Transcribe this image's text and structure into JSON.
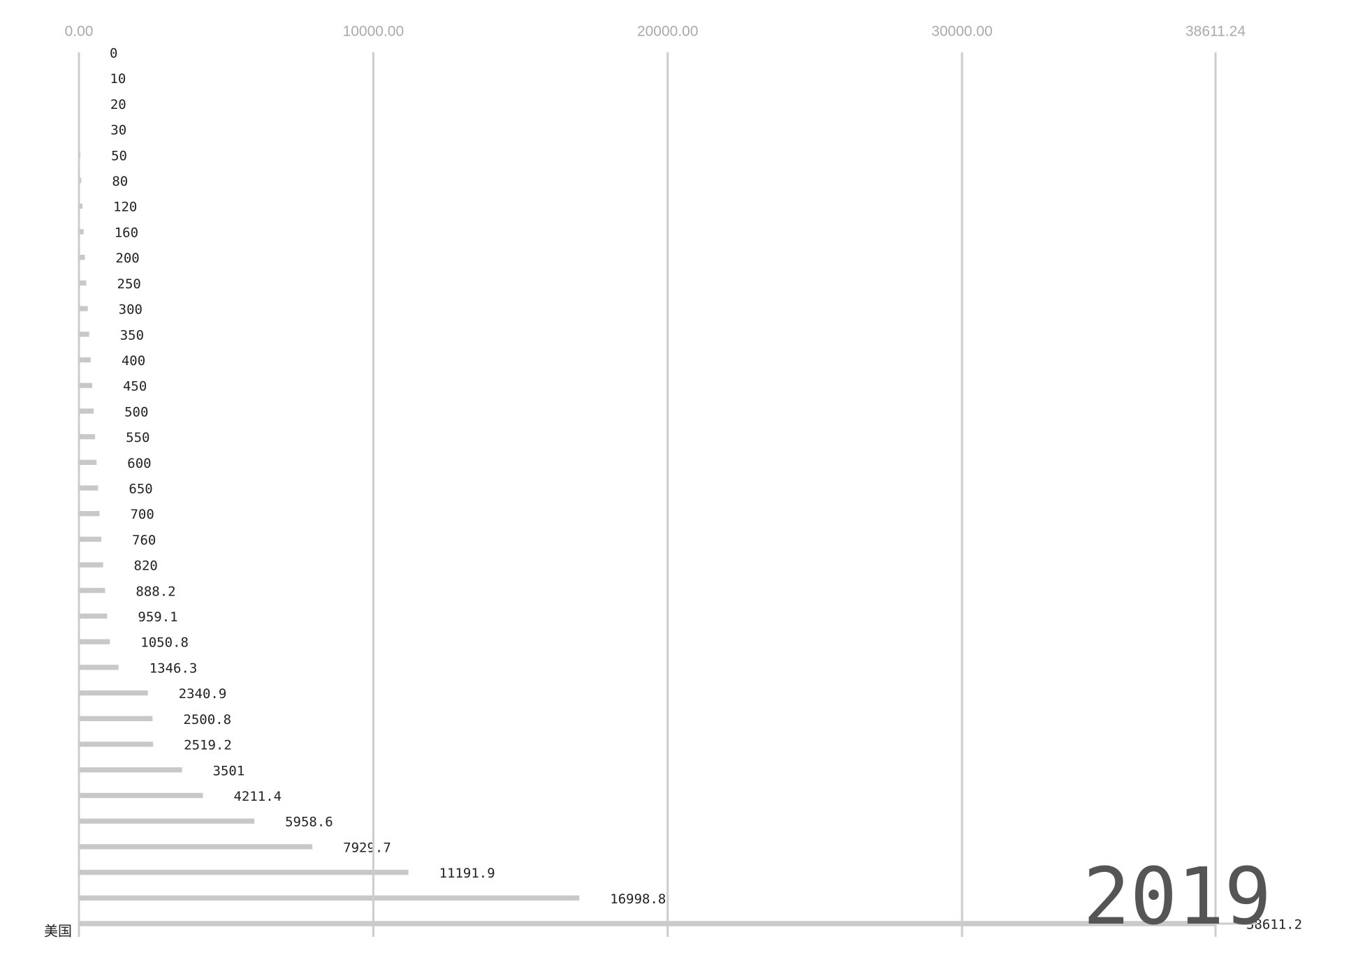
{
  "chart_data": {
    "type": "bar",
    "orientation": "horizontal",
    "year_label": "2019",
    "color": "#c8c8c8",
    "grid": true,
    "xlim": [
      0,
      38611.24
    ],
    "xticks": [
      {
        "value": 0,
        "label": "0.00"
      },
      {
        "value": 10000,
        "label": "10000.00"
      },
      {
        "value": 20000,
        "label": "20000.00"
      },
      {
        "value": 30000,
        "label": "30000.00"
      },
      {
        "value": 38611.24,
        "label": "38611.24"
      }
    ],
    "categories": [
      null,
      null,
      null,
      null,
      null,
      null,
      null,
      null,
      null,
      null,
      null,
      null,
      null,
      null,
      null,
      null,
      null,
      null,
      null,
      null,
      null,
      null,
      null,
      null,
      null,
      null,
      null,
      null,
      null,
      null,
      null,
      null,
      null,
      null,
      "美国"
    ],
    "values": [
      0,
      10,
      20,
      30,
      50,
      80,
      120,
      160,
      200,
      250,
      300,
      350,
      400,
      450,
      500,
      550,
      600,
      650,
      700,
      760,
      820,
      888.2,
      959.1,
      1050.8,
      1346.3,
      2340.9,
      2500.8,
      2519.2,
      3501,
      4211.4,
      5958.6,
      7929.7,
      11191.9,
      16998.8,
      38611.2
    ]
  }
}
